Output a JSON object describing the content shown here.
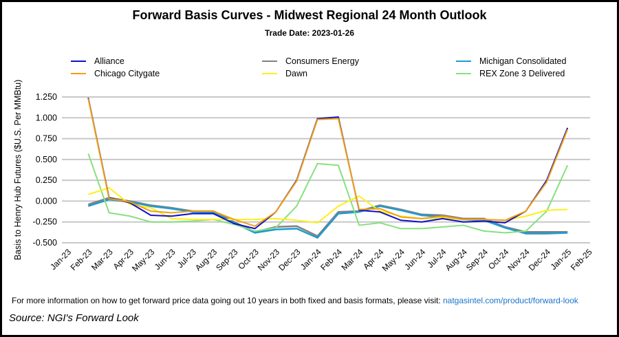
{
  "chart_data": {
    "type": "line",
    "title": "Forward Basis Curves - Midwest Regional 24 Month Outlook",
    "subtitle": "Trade Date: 2023-01-26",
    "ylabel": "Basis to Henry Hub Futures ($U.S. Per MMBtu)",
    "xlabel": "",
    "ylim": [
      -0.5,
      1.25
    ],
    "yticks": [
      "1.250",
      "1.000",
      "0.750",
      "0.500",
      "0.250",
      "0.000",
      "-0.250",
      "-0.500"
    ],
    "ytick_values": [
      1.25,
      1.0,
      0.75,
      0.5,
      0.25,
      0.0,
      -0.25,
      -0.5
    ],
    "xtick_labels": [
      "Jan-23",
      "Feb-23",
      "Mar-23",
      "Apr-23",
      "May-23",
      "Jun-23",
      "Jul-23",
      "Aug-23",
      "Sep-23",
      "Oct-23",
      "Nov-23",
      "Dec-23",
      "Jan-24",
      "Feb-24",
      "Mar-24",
      "Apr-24",
      "May-24",
      "Jun-24",
      "Jul-24",
      "Aug-24",
      "Sep-24",
      "Oct-24",
      "Nov-24",
      "Dec-24",
      "Jan-25",
      "Feb-25"
    ],
    "x": [
      "Feb-23",
      "Mar-23",
      "Apr-23",
      "May-23",
      "Jun-23",
      "Jul-23",
      "Aug-23",
      "Sep-23",
      "Oct-23",
      "Nov-23",
      "Dec-23",
      "Jan-24",
      "Feb-24",
      "Mar-24",
      "Apr-24",
      "May-24",
      "Jun-24",
      "Jul-24",
      "Aug-24",
      "Sep-24",
      "Oct-24",
      "Nov-24",
      "Dec-24",
      "Jan-25"
    ],
    "grid": true,
    "legend_placement": "top",
    "series": [
      {
        "name": "Consumers Energy",
        "color": "#808080",
        "values": [
          -0.04,
          0.04,
          0.0,
          -0.05,
          -0.08,
          -0.12,
          -0.12,
          -0.25,
          -0.37,
          -0.31,
          -0.3,
          -0.42,
          -0.13,
          -0.12,
          -0.05,
          -0.1,
          -0.16,
          -0.17,
          -0.21,
          -0.21,
          -0.31,
          -0.37,
          -0.37,
          -0.37
        ]
      },
      {
        "name": "Michigan Consolidated",
        "color": "#1f9bd1",
        "values": [
          -0.06,
          0.02,
          -0.01,
          -0.06,
          -0.09,
          -0.13,
          -0.14,
          -0.26,
          -0.38,
          -0.34,
          -0.33,
          -0.44,
          -0.15,
          -0.13,
          -0.06,
          -0.11,
          -0.17,
          -0.19,
          -0.22,
          -0.23,
          -0.32,
          -0.39,
          -0.39,
          -0.38
        ]
      },
      {
        "name": "REX Zone 3 Delivered",
        "color": "#86e07e",
        "values": [
          0.57,
          -0.14,
          -0.18,
          -0.25,
          -0.25,
          -0.24,
          -0.22,
          -0.28,
          -0.36,
          -0.32,
          -0.06,
          0.45,
          0.43,
          -0.29,
          -0.26,
          -0.33,
          -0.33,
          -0.31,
          -0.29,
          -0.36,
          -0.38,
          -0.36,
          -0.12,
          0.43
        ]
      },
      {
        "name": "Dawn",
        "color": "#ffef1a",
        "values": [
          0.08,
          0.16,
          -0.04,
          -0.08,
          -0.21,
          -0.22,
          -0.22,
          -0.22,
          -0.22,
          -0.21,
          -0.23,
          -0.26,
          -0.06,
          0.06,
          -0.12,
          -0.18,
          -0.21,
          -0.2,
          -0.22,
          -0.22,
          -0.23,
          -0.18,
          -0.11,
          -0.1
        ]
      },
      {
        "name": "Alliance",
        "color": "#1010c8",
        "values": [
          1.24,
          0.04,
          -0.02,
          -0.17,
          -0.18,
          -0.15,
          -0.15,
          -0.27,
          -0.33,
          -0.13,
          0.25,
          0.99,
          1.01,
          -0.11,
          -0.13,
          -0.23,
          -0.25,
          -0.21,
          -0.25,
          -0.24,
          -0.26,
          -0.12,
          0.25,
          0.88
        ]
      },
      {
        "name": "Chicago Citygate",
        "color": "#f0a010",
        "values": [
          1.23,
          0.03,
          -0.01,
          -0.12,
          -0.14,
          -0.12,
          -0.12,
          -0.22,
          -0.3,
          -0.13,
          0.24,
          0.98,
          0.99,
          -0.1,
          -0.09,
          -0.19,
          -0.21,
          -0.18,
          -0.22,
          -0.22,
          -0.23,
          -0.12,
          0.23,
          0.86
        ]
      }
    ]
  },
  "legend_order": [
    "Alliance",
    "Consumers Energy",
    "Michigan Consolidated",
    "Chicago Citygate",
    "Dawn",
    "REX Zone 3 Delivered"
  ],
  "footer": {
    "text": "For more information on how to get forward price data going out 10 years in both fixed and basis formats, please visit: ",
    "link": "natgasintel.com/product/forward-look"
  },
  "source": "Source: NGI's Forward Look"
}
